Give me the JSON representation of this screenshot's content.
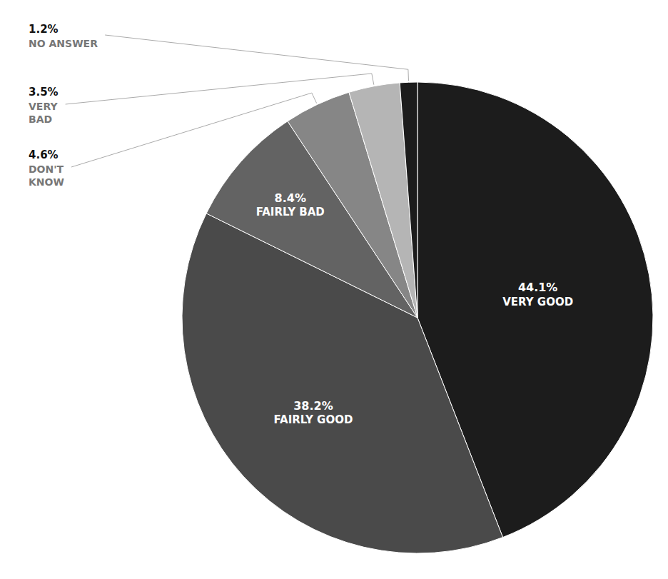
{
  "chart_data": {
    "type": "pie",
    "categories": [
      "VERY GOOD",
      "FAIRLY GOOD",
      "FAIRLY BAD",
      "DON'T\nKNOW",
      "VERY\nBAD",
      "NO ANSWER"
    ],
    "values": [
      44.1,
      38.2,
      8.4,
      4.6,
      3.5,
      1.2
    ],
    "value_labels": [
      "44.1%",
      "38.2%",
      "8.4%",
      "4.6%",
      "3.5%",
      "1.2%"
    ],
    "colors": [
      "#1c1c1c",
      "#4a4a4a",
      "#636363",
      "#868686",
      "#b5b5b5",
      "#1c1c1c"
    ],
    "data_labels": true
  }
}
